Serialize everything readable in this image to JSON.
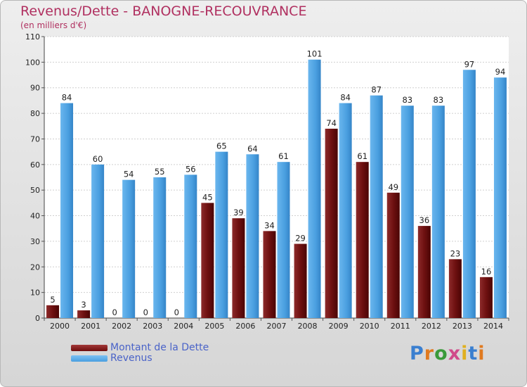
{
  "title": "Revenus/Dette - BANOGNE-RECOUVRANCE",
  "subtitle": "(en milliers d'€)",
  "logo_text": "Proxiti",
  "colors": {
    "dette": "#6e0d0d",
    "revenus": "#4a9fe0",
    "title": "#b03060",
    "legend_text": "#4a63c8"
  },
  "legend": [
    {
      "label": "Montant de la Dette",
      "color_key": "dette"
    },
    {
      "label": "Revenus",
      "color_key": "revenus"
    }
  ],
  "chart_data": {
    "type": "bar",
    "categories": [
      "2000",
      "2001",
      "2002",
      "2003",
      "2004",
      "2005",
      "2006",
      "2007",
      "2008",
      "2009",
      "2010",
      "2011",
      "2012",
      "2013",
      "2014"
    ],
    "series": [
      {
        "name": "Montant de la Dette",
        "values": [
          5,
          3,
          0,
          0,
          0,
          45,
          39,
          34,
          29,
          74,
          61,
          49,
          36,
          23,
          16
        ]
      },
      {
        "name": "Revenus",
        "values": [
          84,
          60,
          54,
          55,
          56,
          65,
          64,
          61,
          101,
          84,
          87,
          83,
          83,
          97,
          94
        ]
      }
    ],
    "yticks": [
      0,
      10,
      20,
      30,
      40,
      50,
      60,
      70,
      80,
      90,
      100,
      110
    ],
    "ylim": [
      0,
      110
    ],
    "grid": true,
    "legend_position": "bottom-left"
  }
}
